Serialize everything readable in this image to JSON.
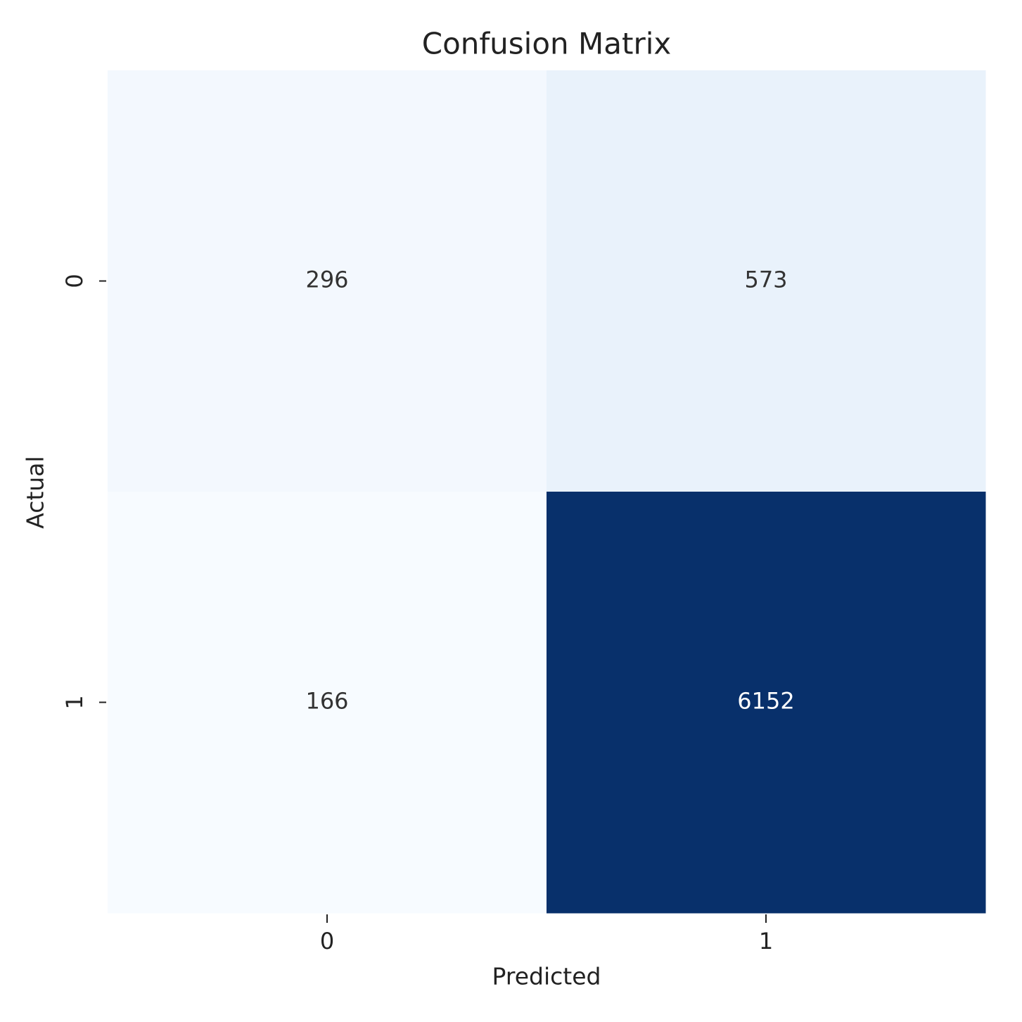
{
  "chart_data": {
    "type": "heatmap",
    "title": "Confusion Matrix",
    "x_label": "Predicted",
    "y_label": "Actual",
    "x_categories": [
      "0",
      "1"
    ],
    "y_categories": [
      "0",
      "1"
    ],
    "values": [
      [
        296,
        573
      ],
      [
        166,
        6152
      ]
    ],
    "colormap": [
      "#f7fbff",
      "#deebf7",
      "#c6dbef",
      "#9ecae1",
      "#6baed6",
      "#4292c6",
      "#2171b5",
      "#08519c",
      "#08306b"
    ]
  }
}
